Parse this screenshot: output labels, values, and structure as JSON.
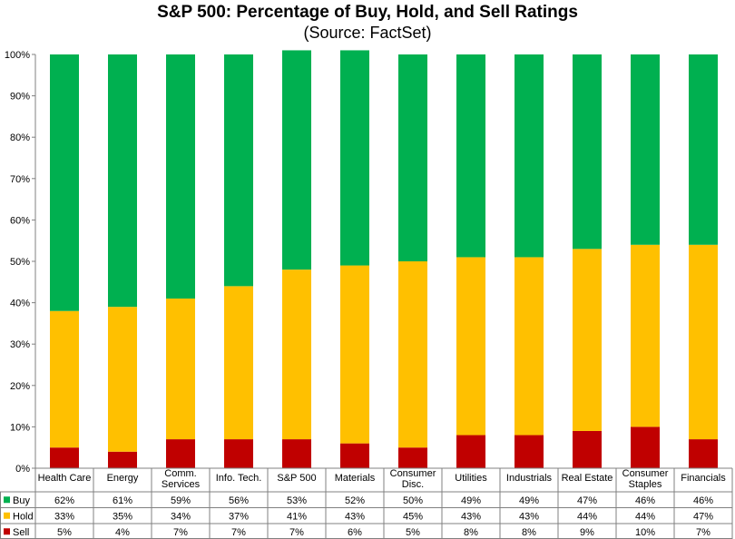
{
  "chart_data": {
    "type": "bar",
    "stacked": true,
    "title": "S&P 500: Percentage of Buy, Hold, and Sell Ratings",
    "subtitle": "(Source: FactSet)",
    "categories": [
      "Health Care",
      "Energy",
      "Comm. Services",
      "Info. Tech.",
      "S&P 500",
      "Materials",
      "Consumer Disc.",
      "Utilities",
      "Industrials",
      "Real Estate",
      "Consumer Staples",
      "Financials"
    ],
    "category_lines": [
      [
        "Health Care"
      ],
      [
        "Energy"
      ],
      [
        "Comm.",
        "Services"
      ],
      [
        "Info. Tech."
      ],
      [
        "S&P 500"
      ],
      [
        "Materials"
      ],
      [
        "Consumer",
        "Disc."
      ],
      [
        "Utilities"
      ],
      [
        "Industrials"
      ],
      [
        "Real Estate"
      ],
      [
        "Consumer",
        "Staples"
      ],
      [
        "Financials"
      ]
    ],
    "series": [
      {
        "name": "Sell",
        "color": "#c00000",
        "values": [
          5,
          4,
          7,
          7,
          7,
          6,
          5,
          8,
          8,
          9,
          10,
          7
        ],
        "labels": [
          "5%",
          "4%",
          "7%",
          "7%",
          "7%",
          "6%",
          "5%",
          "8%",
          "8%",
          "9%",
          "10%",
          "7%"
        ]
      },
      {
        "name": "Hold",
        "color": "#ffc000",
        "values": [
          33,
          35,
          34,
          37,
          41,
          43,
          45,
          43,
          43,
          44,
          44,
          47
        ],
        "labels": [
          "33%",
          "35%",
          "34%",
          "37%",
          "41%",
          "43%",
          "45%",
          "43%",
          "43%",
          "44%",
          "44%",
          "47%"
        ]
      },
      {
        "name": "Buy",
        "color": "#00b050",
        "values": [
          62,
          61,
          59,
          56,
          53,
          52,
          50,
          49,
          49,
          47,
          46,
          46
        ],
        "labels": [
          "62%",
          "61%",
          "59%",
          "56%",
          "53%",
          "52%",
          "50%",
          "49%",
          "49%",
          "47%",
          "46%",
          "46%"
        ]
      }
    ],
    "table_row_order": [
      "Buy",
      "Hold",
      "Sell"
    ],
    "ylim": [
      0,
      100
    ],
    "yticks": [
      "0%",
      "10%",
      "20%",
      "30%",
      "40%",
      "50%",
      "60%",
      "70%",
      "80%",
      "90%",
      "100%"
    ],
    "grid": false,
    "legend": "data-table"
  }
}
